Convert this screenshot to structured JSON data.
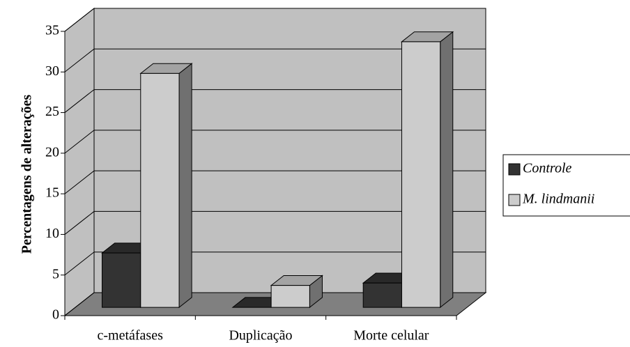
{
  "chart_data": {
    "type": "bar3d",
    "y_label": "Percentagens de alterações",
    "categories": [
      "c-metáfases",
      "Duplicação",
      "Morte celular"
    ],
    "series": [
      {
        "name": "Controle",
        "color": "#333333",
        "values": [
          6.7,
          0,
          3
        ]
      },
      {
        "name": "M. lindmanii",
        "color": "#cccccc",
        "values": [
          28.8,
          2.7,
          32.7
        ]
      }
    ],
    "ylim": [
      0,
      35
    ],
    "yticks": [
      0,
      5,
      10,
      15,
      20,
      25,
      30,
      35
    ],
    "grid": true,
    "legend": "right"
  }
}
